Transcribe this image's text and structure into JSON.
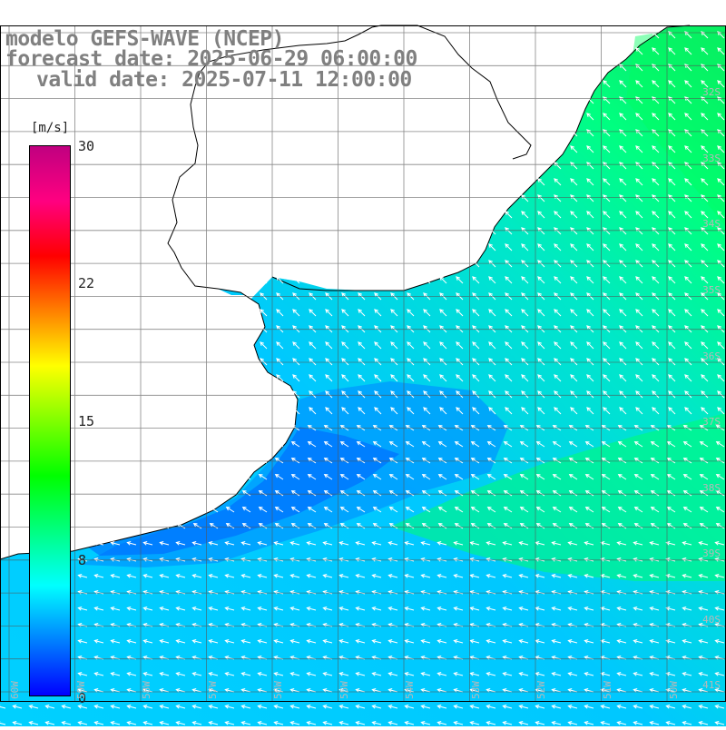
{
  "title": {
    "line1": "modelo GEFS-WAVE (NCEP)",
    "line2": "forecast date: 2025-06-29 06:00:00",
    "line3": "valid date: 2025-07-11 12:00:00"
  },
  "legend": {
    "unit": "[m/s]",
    "ticks": [
      "30",
      "22",
      "15",
      "8",
      "0"
    ],
    "tick_values": [
      30,
      22,
      15,
      8,
      0
    ],
    "range": [
      0,
      30
    ],
    "colors": [
      "#0000ff",
      "#0080ff",
      "#00ffff",
      "#00ff80",
      "#00ff00",
      "#80ff00",
      "#ffff00",
      "#ff8000",
      "#ff0000",
      "#ff0080",
      "#c00080"
    ]
  },
  "lat_labels": [
    "32S",
    "33S",
    "34S",
    "35S",
    "36S",
    "37S",
    "38S",
    "39S",
    "40S",
    "41S"
  ],
  "lon_labels": [
    "60W",
    "59W",
    "58W",
    "57W",
    "56W",
    "55W",
    "54W",
    "53W",
    "52W",
    "51W",
    "50W"
  ],
  "colors": {
    "land": "#ffffff",
    "grid": "#555555",
    "coast": "#000000",
    "arrow": "#ffffff"
  }
}
